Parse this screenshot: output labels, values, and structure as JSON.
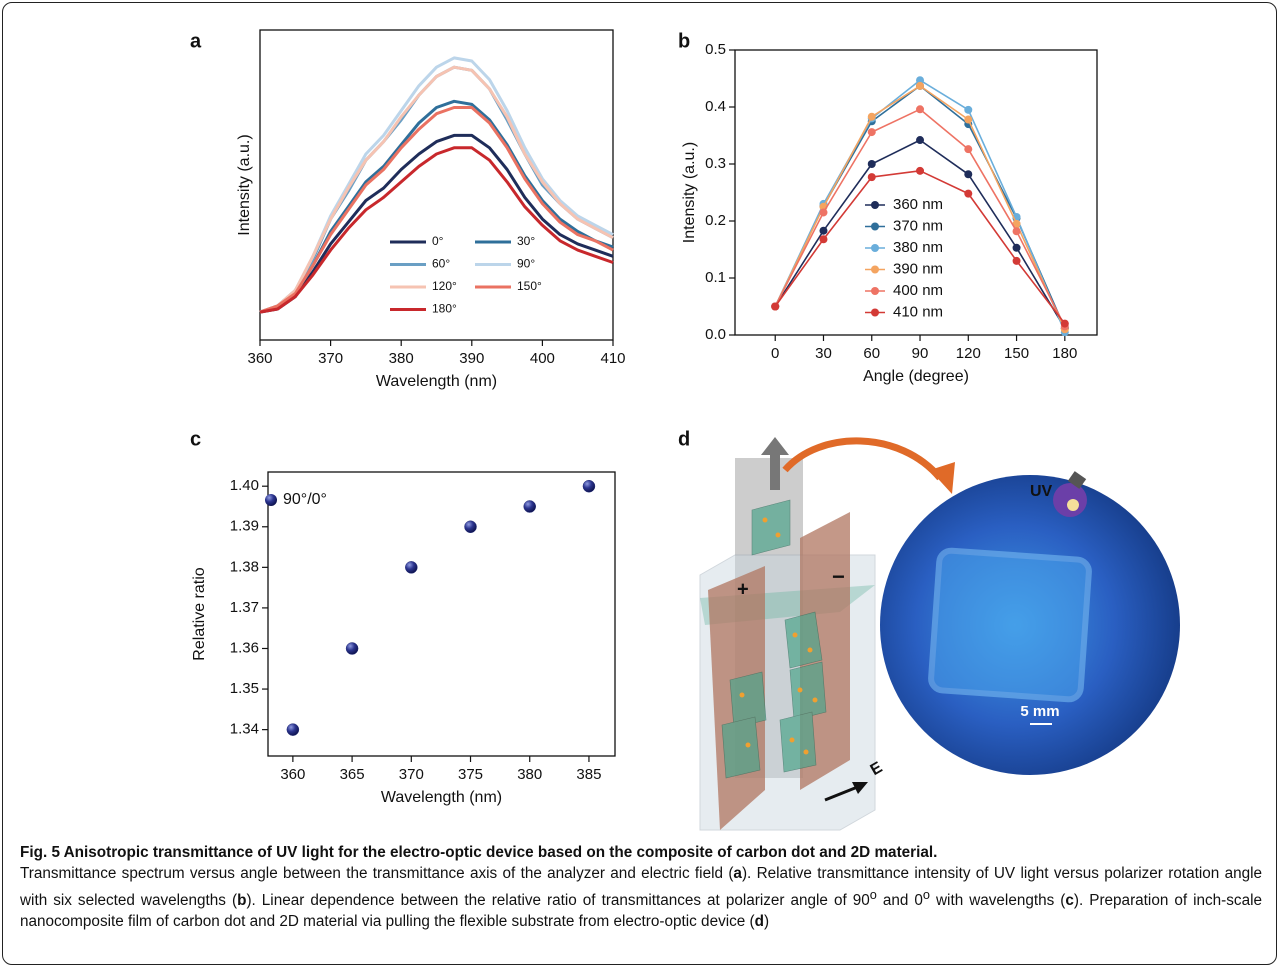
{
  "chart_data": [
    {
      "type": "line",
      "panel": "a",
      "xlabel": "Wavelength (nm)",
      "ylabel": "Intensity (a.u.)",
      "x": [
        360,
        362.5,
        365,
        367.5,
        370,
        372.5,
        375,
        377.5,
        380,
        382.5,
        385,
        387.5,
        390,
        392.5,
        395,
        397.5,
        400,
        402.5,
        405,
        407.5,
        410
      ],
      "xlim": [
        360,
        410
      ],
      "xticks": [
        360,
        370,
        380,
        390,
        400,
        410
      ],
      "ylim": [
        0,
        1
      ],
      "legend": "lower center",
      "series": [
        {
          "name": "0°",
          "color": "#1f2d5a",
          "values": [
            0.09,
            0.1,
            0.14,
            0.22,
            0.31,
            0.38,
            0.45,
            0.49,
            0.55,
            0.6,
            0.64,
            0.66,
            0.66,
            0.62,
            0.55,
            0.46,
            0.39,
            0.34,
            0.31,
            0.29,
            0.27
          ]
        },
        {
          "name": "30°",
          "color": "#2f6f9a",
          "values": [
            0.09,
            0.11,
            0.15,
            0.24,
            0.35,
            0.43,
            0.51,
            0.56,
            0.63,
            0.7,
            0.75,
            0.77,
            0.76,
            0.71,
            0.63,
            0.53,
            0.45,
            0.39,
            0.35,
            0.32,
            0.3
          ]
        },
        {
          "name": "60°",
          "color": "#6a9fc4",
          "values": [
            0.09,
            0.11,
            0.16,
            0.26,
            0.39,
            0.48,
            0.58,
            0.64,
            0.71,
            0.79,
            0.85,
            0.88,
            0.87,
            0.81,
            0.71,
            0.6,
            0.5,
            0.44,
            0.39,
            0.36,
            0.33
          ]
        },
        {
          "name": "90°",
          "color": "#bcd5ea",
          "values": [
            0.09,
            0.11,
            0.16,
            0.27,
            0.4,
            0.5,
            0.6,
            0.66,
            0.74,
            0.82,
            0.88,
            0.91,
            0.9,
            0.84,
            0.74,
            0.62,
            0.52,
            0.45,
            0.4,
            0.37,
            0.34
          ]
        },
        {
          "name": "120°",
          "color": "#f6c3b2",
          "values": [
            0.09,
            0.11,
            0.16,
            0.27,
            0.39,
            0.49,
            0.58,
            0.64,
            0.72,
            0.79,
            0.85,
            0.88,
            0.87,
            0.81,
            0.72,
            0.6,
            0.51,
            0.44,
            0.39,
            0.36,
            0.33
          ]
        },
        {
          "name": "150°",
          "color": "#ea7262",
          "values": [
            0.09,
            0.11,
            0.15,
            0.24,
            0.34,
            0.42,
            0.5,
            0.55,
            0.62,
            0.68,
            0.73,
            0.75,
            0.75,
            0.7,
            0.62,
            0.52,
            0.44,
            0.38,
            0.34,
            0.32,
            0.29
          ]
        },
        {
          "name": "180°",
          "color": "#c8282c",
          "values": [
            0.09,
            0.1,
            0.14,
            0.21,
            0.29,
            0.36,
            0.42,
            0.46,
            0.51,
            0.56,
            0.6,
            0.62,
            0.62,
            0.58,
            0.51,
            0.43,
            0.37,
            0.32,
            0.29,
            0.27,
            0.25
          ]
        }
      ]
    },
    {
      "type": "line",
      "panel": "b",
      "xlabel": "Angle (degree)",
      "ylabel": "Intensity (a.u.)",
      "markers": true,
      "x": [
        0,
        30,
        60,
        90,
        120,
        150,
        180
      ],
      "xlim": [
        -25,
        200
      ],
      "xticks": [
        0,
        30,
        60,
        90,
        120,
        150,
        180
      ],
      "ylim": [
        0,
        0.5
      ],
      "yticks": [
        {
          "value": 0,
          "label": "0.0"
        },
        0.1,
        0.2,
        0.3,
        0.4,
        0.5
      ],
      "legend": "lower center",
      "series": [
        {
          "name": "360 nm",
          "color": "#1f2d5a",
          "values": [
            0.05,
            0.183,
            0.3,
            0.342,
            0.282,
            0.153,
            0.012
          ]
        },
        {
          "name": "370 nm",
          "color": "#2f6f9a",
          "values": [
            0.05,
            0.226,
            0.375,
            0.437,
            0.37,
            0.205,
            0.012
          ]
        },
        {
          "name": "380 nm",
          "color": "#6aaedb",
          "values": [
            0.05,
            0.23,
            0.38,
            0.447,
            0.395,
            0.207,
            0.005
          ]
        },
        {
          "name": "390 nm",
          "color": "#f4a460",
          "values": [
            0.05,
            0.225,
            0.383,
            0.437,
            0.378,
            0.195,
            0.01
          ]
        },
        {
          "name": "400 nm",
          "color": "#ee7364",
          "values": [
            0.05,
            0.215,
            0.356,
            0.396,
            0.326,
            0.182,
            0.015
          ]
        },
        {
          "name": "410 nm",
          "color": "#d33a36",
          "values": [
            0.05,
            0.168,
            0.277,
            0.288,
            0.248,
            0.13,
            0.02
          ]
        }
      ]
    },
    {
      "type": "scatter",
      "panel": "c",
      "xlabel": "Wavelength (nm)",
      "ylabel": "Relative ratio",
      "xlim": [
        357.9,
        387.2
      ],
      "xticks": [
        360,
        365,
        370,
        375,
        380,
        385
      ],
      "ylim": [
        1.3335,
        1.4035
      ],
      "yticks": [
        1.34,
        1.35,
        1.36,
        1.37,
        1.38,
        1.39,
        {
          "value": 1.4,
          "label": "1.40"
        }
      ],
      "series": [
        {
          "name": "90°/0°",
          "color": "#27307a",
          "x": [
            360,
            365,
            370,
            375,
            380,
            385
          ],
          "values": [
            1.34,
            1.36,
            1.38,
            1.39,
            1.395,
            1.4
          ]
        }
      ]
    }
  ],
  "diagram": {
    "panel": "d",
    "plus": "+",
    "minus": "−",
    "field": "E",
    "light": "UV",
    "scale": "5 mm"
  },
  "caption": {
    "title": "Fig. 5 Anisotropic transmittance of UV light for the electro-optic device based on the composite of carbon dot and 2D material.",
    "body": [
      "Transmittance spectrum versus angle between the transmittance axis of the analyzer and electric field (",
      "a",
      "). Relative transmittance intensity of UV light versus polarizer rotation angle with six selected wavelengths (",
      "b",
      "). Linear dependence between the relative ratio of transmittances at polarizer angle of 90",
      "o",
      " and 0",
      "o",
      " with wavelengths (",
      "c",
      "). Preparation of inch-scale nanocomposite film of carbon dot and 2D material via pulling the flexible substrate from electro-optic device (",
      "d",
      ")"
    ]
  }
}
